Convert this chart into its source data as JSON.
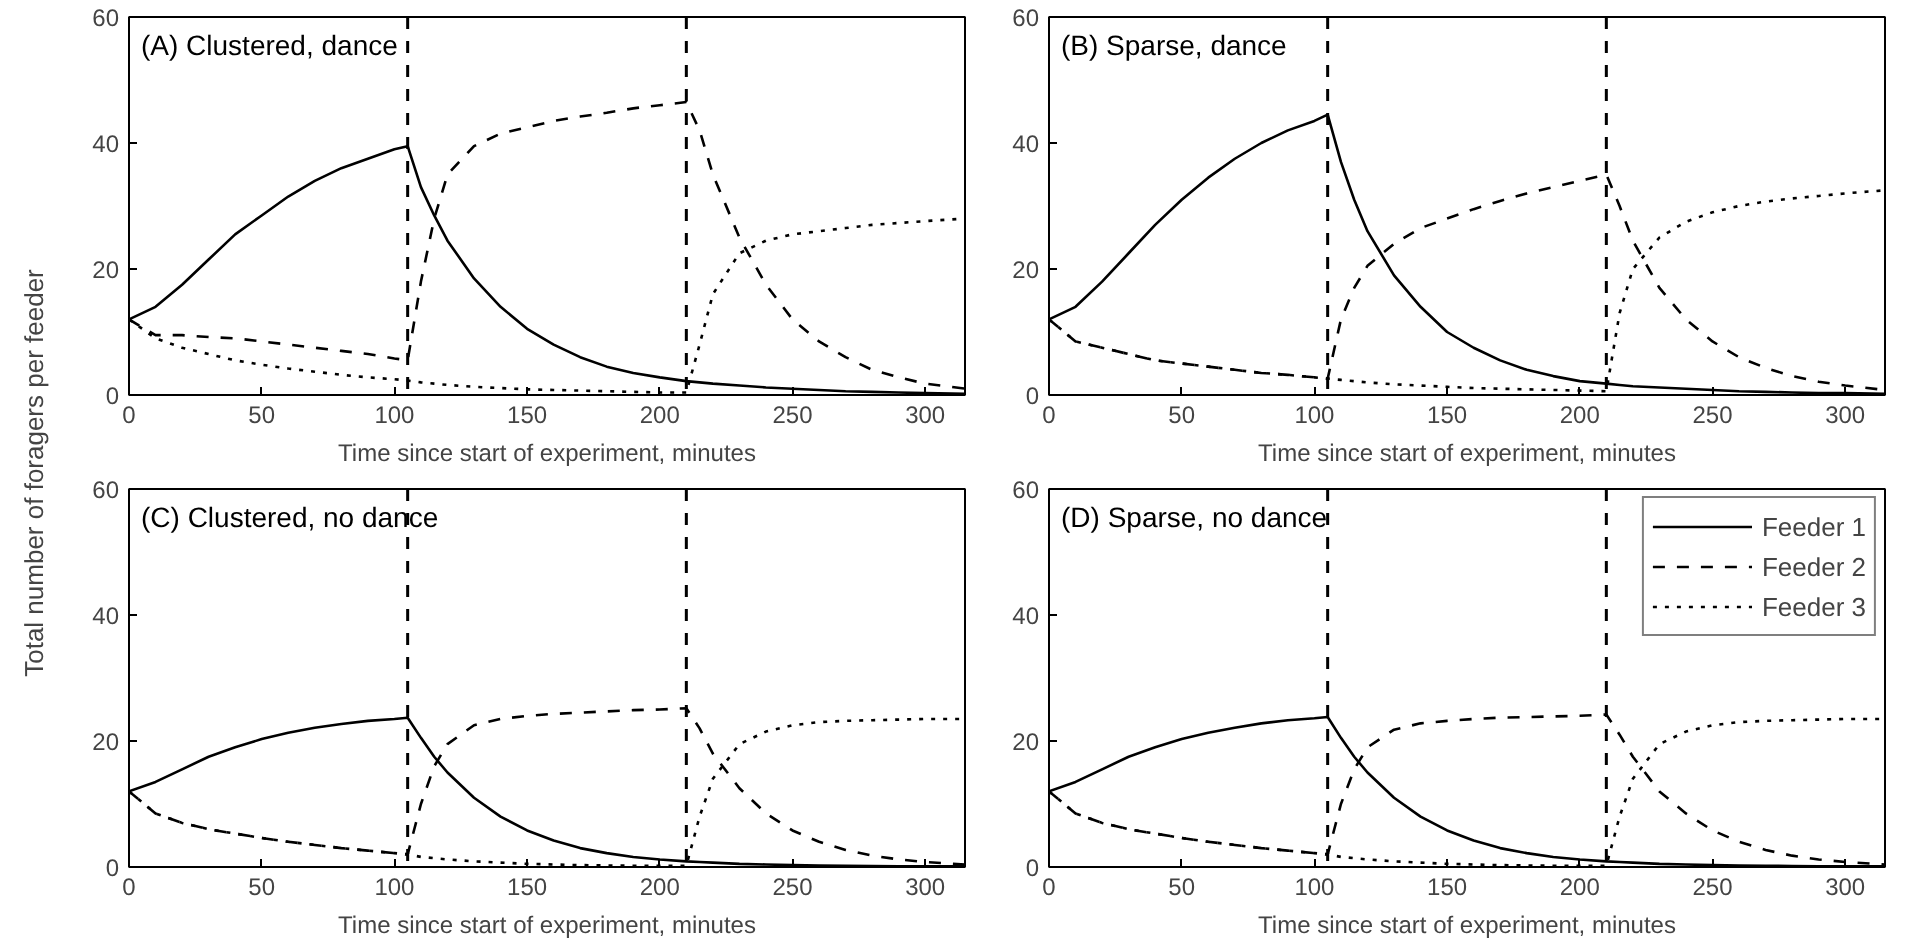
{
  "chart_data": [
    {
      "type": "line",
      "title": "(A) Clustered, dance",
      "xlabel": "Time since start of experiment, minutes",
      "ylabel": "Total number of foragers per feeder",
      "xlim": [
        0,
        315
      ],
      "ylim": [
        0,
        60
      ],
      "xticks": [
        0,
        50,
        100,
        150,
        200,
        250,
        300
      ],
      "yticks": [
        0,
        20,
        40,
        60
      ],
      "grid": false,
      "legend": false,
      "x": [
        0,
        10,
        20,
        30,
        40,
        50,
        60,
        70,
        80,
        90,
        100,
        105,
        110,
        115,
        120,
        130,
        140,
        150,
        160,
        170,
        180,
        190,
        200,
        210,
        215,
        220,
        230,
        240,
        250,
        260,
        270,
        280,
        290,
        300,
        315
      ],
      "ref_lines": [
        {
          "axis": "x",
          "value": 105,
          "line_style": "dashed",
          "color": "#000000"
        },
        {
          "axis": "x",
          "value": 210,
          "line_style": "dashed",
          "color": "#000000"
        }
      ],
      "series": [
        {
          "color": "#000000",
          "line_style": "solid",
          "values": [
            12,
            14,
            17.5,
            21.5,
            25.5,
            28.5,
            31.5,
            34,
            36,
            37.5,
            39,
            39.5,
            33,
            28.5,
            24.5,
            18.5,
            14,
            10.5,
            8,
            6,
            4.5,
            3.5,
            2.8,
            2.2,
            2,
            1.8,
            1.5,
            1.2,
            1,
            0.8,
            0.6,
            0.5,
            0.4,
            0.3,
            0.2
          ]
        },
        {
          "color": "#000000",
          "line_style": "dashed",
          "values": [
            12,
            9.5,
            9.5,
            9.2,
            9,
            8.5,
            8,
            7.5,
            7,
            6.5,
            5.8,
            5.5,
            18,
            28,
            35,
            39.5,
            41.5,
            42.5,
            43.5,
            44.2,
            44.8,
            45.5,
            46,
            46.5,
            42,
            35,
            25,
            17.5,
            12,
            8.5,
            6,
            4,
            2.8,
            1.8,
            1
          ]
        },
        {
          "color": "#000000",
          "line_style": "dotted",
          "values": [
            12,
            9,
            7.5,
            6.5,
            5.5,
            4.8,
            4.2,
            3.7,
            3.2,
            2.8,
            2.5,
            2.3,
            2,
            1.8,
            1.6,
            1.3,
            1.1,
            0.9,
            0.8,
            0.7,
            0.6,
            0.5,
            0.4,
            0.4,
            8,
            16,
            22.5,
            24.5,
            25.5,
            26,
            26.5,
            27,
            27.3,
            27.6,
            28
          ]
        }
      ]
    },
    {
      "type": "line",
      "title": "(B) Sparse, dance",
      "xlabel": "Time since start of experiment, minutes",
      "xlim": [
        0,
        315
      ],
      "ylim": [
        0,
        60
      ],
      "xticks": [
        0,
        50,
        100,
        150,
        200,
        250,
        300
      ],
      "yticks": [
        0,
        20,
        40,
        60
      ],
      "grid": false,
      "legend": false,
      "x": [
        0,
        10,
        20,
        30,
        40,
        50,
        60,
        70,
        80,
        90,
        100,
        105,
        110,
        115,
        120,
        130,
        140,
        150,
        160,
        170,
        180,
        190,
        200,
        210,
        215,
        220,
        230,
        240,
        250,
        260,
        270,
        280,
        290,
        300,
        315
      ],
      "ref_lines": [
        {
          "axis": "x",
          "value": 105,
          "line_style": "dashed",
          "color": "#000000"
        },
        {
          "axis": "x",
          "value": 210,
          "line_style": "dashed",
          "color": "#000000"
        }
      ],
      "series": [
        {
          "color": "#000000",
          "line_style": "solid",
          "values": [
            12,
            14,
            18,
            22.5,
            27,
            31,
            34.5,
            37.5,
            40,
            42,
            43.5,
            44.5,
            37,
            31,
            26,
            19,
            14,
            10,
            7.5,
            5.5,
            4,
            3,
            2.2,
            1.8,
            1.6,
            1.4,
            1.2,
            1,
            0.8,
            0.6,
            0.5,
            0.4,
            0.3,
            0.3,
            0.2
          ]
        },
        {
          "color": "#000000",
          "line_style": "dashed",
          "values": [
            12,
            8.5,
            7.5,
            6.5,
            5.5,
            5,
            4.5,
            4,
            3.5,
            3.2,
            2.8,
            2.6,
            12,
            17,
            20.5,
            24,
            26.5,
            28,
            29.5,
            30.8,
            32,
            33,
            34,
            35,
            30,
            24.5,
            17,
            12,
            8.5,
            6,
            4.3,
            3,
            2.1,
            1.5,
            0.8
          ]
        },
        {
          "color": "#000000",
          "line_style": "dotted",
          "values": [
            12,
            8.5,
            7.5,
            6.5,
            5.5,
            5,
            4.5,
            4,
            3.5,
            3.2,
            2.8,
            2.6,
            2.4,
            2.2,
            2,
            1.7,
            1.5,
            1.3,
            1.1,
            1,
            0.9,
            0.8,
            0.7,
            0.6,
            13,
            20,
            25,
            27.5,
            29,
            30,
            30.7,
            31.2,
            31.6,
            32,
            32.5
          ]
        }
      ]
    },
    {
      "type": "line",
      "title": "(C) Clustered, no dance",
      "xlabel": "Time since start of experiment, minutes",
      "xlim": [
        0,
        315
      ],
      "ylim": [
        0,
        60
      ],
      "xticks": [
        0,
        50,
        100,
        150,
        200,
        250,
        300
      ],
      "yticks": [
        0,
        20,
        40,
        60
      ],
      "grid": false,
      "legend": false,
      "x": [
        0,
        10,
        20,
        30,
        40,
        50,
        60,
        70,
        80,
        90,
        100,
        105,
        110,
        115,
        120,
        130,
        140,
        150,
        160,
        170,
        180,
        190,
        200,
        210,
        215,
        220,
        230,
        240,
        250,
        260,
        270,
        280,
        290,
        300,
        315
      ],
      "ref_lines": [
        {
          "axis": "x",
          "value": 105,
          "line_style": "dashed",
          "color": "#000000"
        },
        {
          "axis": "x",
          "value": 210,
          "line_style": "dashed",
          "color": "#000000"
        }
      ],
      "series": [
        {
          "color": "#000000",
          "line_style": "solid",
          "values": [
            12,
            13.5,
            15.5,
            17.5,
            19,
            20.3,
            21.3,
            22.1,
            22.7,
            23.2,
            23.5,
            23.7,
            20.5,
            17.5,
            15,
            11,
            8,
            5.8,
            4.2,
            3,
            2.2,
            1.6,
            1.2,
            0.9,
            0.8,
            0.7,
            0.5,
            0.4,
            0.3,
            0.25,
            0.2,
            0.15,
            0.1,
            0.1,
            0.1
          ]
        },
        {
          "color": "#000000",
          "line_style": "dashed",
          "values": [
            12,
            8.5,
            7,
            6,
            5.3,
            4.6,
            4,
            3.5,
            3,
            2.6,
            2.2,
            2,
            10,
            16,
            19.5,
            22.5,
            23.5,
            24,
            24.3,
            24.5,
            24.7,
            24.9,
            25,
            25.2,
            22,
            18,
            12.5,
            8.5,
            5.8,
            4,
            2.7,
            1.8,
            1.2,
            0.8,
            0.4
          ]
        },
        {
          "color": "#000000",
          "line_style": "dotted",
          "values": [
            12,
            8.5,
            7,
            6,
            5.3,
            4.6,
            4,
            3.5,
            3,
            2.6,
            2.2,
            2,
            1.6,
            1.4,
            1.2,
            0.9,
            0.7,
            0.5,
            0.4,
            0.3,
            0.25,
            0.2,
            0.2,
            0.2,
            8,
            14,
            19.5,
            21.5,
            22.5,
            23,
            23.2,
            23.3,
            23.4,
            23.5,
            23.5
          ]
        }
      ]
    },
    {
      "type": "line",
      "title": "(D) Sparse, no dance",
      "xlabel": "Time since start of experiment, minutes",
      "xlim": [
        0,
        315
      ],
      "ylim": [
        0,
        60
      ],
      "xticks": [
        0,
        50,
        100,
        150,
        200,
        250,
        300
      ],
      "yticks": [
        0,
        20,
        40,
        60
      ],
      "grid": false,
      "legend": "top right",
      "x": [
        0,
        10,
        20,
        30,
        40,
        50,
        60,
        70,
        80,
        90,
        100,
        105,
        110,
        115,
        120,
        130,
        140,
        150,
        160,
        170,
        180,
        190,
        200,
        210,
        215,
        220,
        230,
        240,
        250,
        260,
        270,
        280,
        290,
        300,
        315
      ],
      "ref_lines": [
        {
          "axis": "x",
          "value": 105,
          "line_style": "dashed",
          "color": "#000000"
        },
        {
          "axis": "x",
          "value": 210,
          "line_style": "dashed",
          "color": "#000000"
        }
      ],
      "series": [
        {
          "name": "Feeder 1",
          "color": "#000000",
          "line_style": "solid",
          "values": [
            12,
            13.5,
            15.5,
            17.5,
            19,
            20.3,
            21.3,
            22.1,
            22.8,
            23.3,
            23.6,
            23.8,
            20.5,
            17.5,
            15,
            11,
            8,
            5.8,
            4.2,
            3,
            2.2,
            1.6,
            1.2,
            0.9,
            0.8,
            0.7,
            0.5,
            0.4,
            0.3,
            0.25,
            0.2,
            0.15,
            0.1,
            0.1,
            0.1
          ]
        },
        {
          "name": "Feeder 2",
          "color": "#000000",
          "line_style": "dashed",
          "values": [
            12,
            8.5,
            7,
            6,
            5.3,
            4.6,
            4,
            3.5,
            3,
            2.6,
            2.2,
            2,
            10,
            15.5,
            19,
            21.8,
            22.8,
            23.2,
            23.5,
            23.7,
            23.8,
            23.9,
            24,
            24.2,
            21,
            17.5,
            12,
            8.5,
            5.8,
            4,
            2.7,
            1.8,
            1.2,
            0.8,
            0.4
          ]
        },
        {
          "name": "Feeder 3",
          "color": "#000000",
          "line_style": "dotted",
          "values": [
            12,
            8.5,
            7,
            6,
            5.3,
            4.6,
            4,
            3.5,
            3,
            2.6,
            2.2,
            2,
            1.6,
            1.4,
            1.2,
            0.9,
            0.7,
            0.5,
            0.4,
            0.3,
            0.25,
            0.2,
            0.2,
            0.2,
            8,
            14,
            19.5,
            21.5,
            22.5,
            23,
            23.2,
            23.3,
            23.4,
            23.5,
            23.5
          ]
        }
      ]
    }
  ]
}
